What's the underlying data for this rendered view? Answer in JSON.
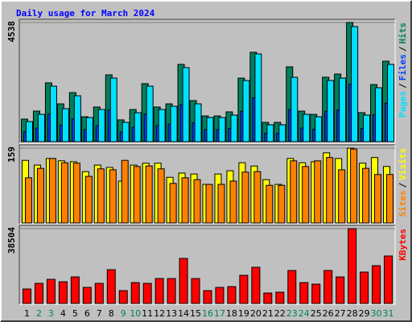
{
  "title": "Daily usage for March 2024",
  "categories": [
    "1",
    "2",
    "3",
    "4",
    "5",
    "6",
    "7",
    "8",
    "9",
    "10",
    "11",
    "12",
    "13",
    "14",
    "15",
    "16",
    "17",
    "18",
    "19",
    "20",
    "21",
    "22",
    "23",
    "24",
    "25",
    "26",
    "27",
    "28",
    "29",
    "30",
    "31"
  ],
  "category_colors": [
    "#000000",
    "#00805c",
    "#00805c",
    "#000000",
    "#000000",
    "#000000",
    "#000000",
    "#000000",
    "#00805c",
    "#00805c",
    "#000000",
    "#000000",
    "#000000",
    "#000000",
    "#000000",
    "#00805c",
    "#00805c",
    "#000000",
    "#000000",
    "#000000",
    "#000000",
    "#000000",
    "#00805c",
    "#00805c",
    "#000000",
    "#000000",
    "#000000",
    "#000000",
    "#000000",
    "#00805c",
    "#00805c"
  ],
  "chart_data": [
    {
      "type": "bar",
      "ylim": [
        0,
        4538
      ],
      "yticks": [
        4538
      ],
      "separator": "/",
      "series": [
        {
          "name": "Hits",
          "color": "#00805c",
          "values": [
            860,
            1165,
            2240,
            1440,
            1870,
            950,
            1320,
            2545,
            830,
            1225,
            2210,
            1320,
            1440,
            2945,
            1565,
            980,
            980,
            1135,
            2420,
            3405,
            735,
            735,
            2850,
            1165,
            1040,
            2455,
            2575,
            4538,
            1105,
            2175,
            3065
          ]
        },
        {
          "name": "Files",
          "color": "#0040ff",
          "values": [
            380,
            520,
            1050,
            630,
            870,
            460,
            610,
            1210,
            370,
            550,
            1060,
            610,
            670,
            1410,
            720,
            460,
            460,
            510,
            1160,
            1670,
            320,
            320,
            1230,
            520,
            480,
            1160,
            1210,
            2190,
            510,
            1030,
            1470
          ]
        },
        {
          "name": "Pages",
          "color": "#00e0ff",
          "values": [
            767,
            1042,
            2115,
            1257,
            1748,
            920,
            1226,
            2422,
            736,
            1104,
            2115,
            1226,
            1349,
            2821,
            1441,
            920,
            920,
            1012,
            2330,
            3342,
            644,
            644,
            2453,
            1042,
            950,
            2330,
            2422,
            4384,
            1012,
            2054,
            2943
          ]
        }
      ]
    },
    {
      "type": "bar",
      "ylim": [
        0,
        159
      ],
      "yticks": [
        159
      ],
      "separator": "/",
      "series": [
        {
          "name": "Visits",
          "color": "#ffff00",
          "values": [
            133,
            123,
            137,
            132,
            130,
            109,
            123,
            118,
            89,
            123,
            127,
            127,
            97,
            106,
            104,
            82,
            104,
            111,
            128,
            121,
            92,
            82,
            137,
            128,
            130,
            149,
            137,
            159,
            127,
            139,
            120
          ]
        },
        {
          "name": "Sites",
          "color": "#ff8000",
          "values": [
            96,
            116,
            137,
            128,
            127,
            99,
            115,
            113,
            133,
            120,
            121,
            115,
            84,
            96,
            92,
            82,
            82,
            89,
            108,
            109,
            80,
            80,
            132,
            120,
            132,
            139,
            113,
            157,
            116,
            103,
            103
          ]
        }
      ]
    },
    {
      "type": "bar",
      "ylim": [
        0,
        38504
      ],
      "yticks": [
        38504
      ],
      "series": [
        {
          "name": "KBytes",
          "color": "#ff0000",
          "values": [
            7450,
            10350,
            12420,
            11180,
            13660,
            8280,
            10350,
            17390,
            6620,
            10760,
            10350,
            12830,
            12830,
            23180,
            12830,
            6620,
            8280,
            8690,
            14490,
            18630,
            5380,
            5800,
            16970,
            10760,
            9940,
            16970,
            13660,
            38504,
            16150,
            19460,
            24430
          ]
        }
      ]
    }
  ]
}
